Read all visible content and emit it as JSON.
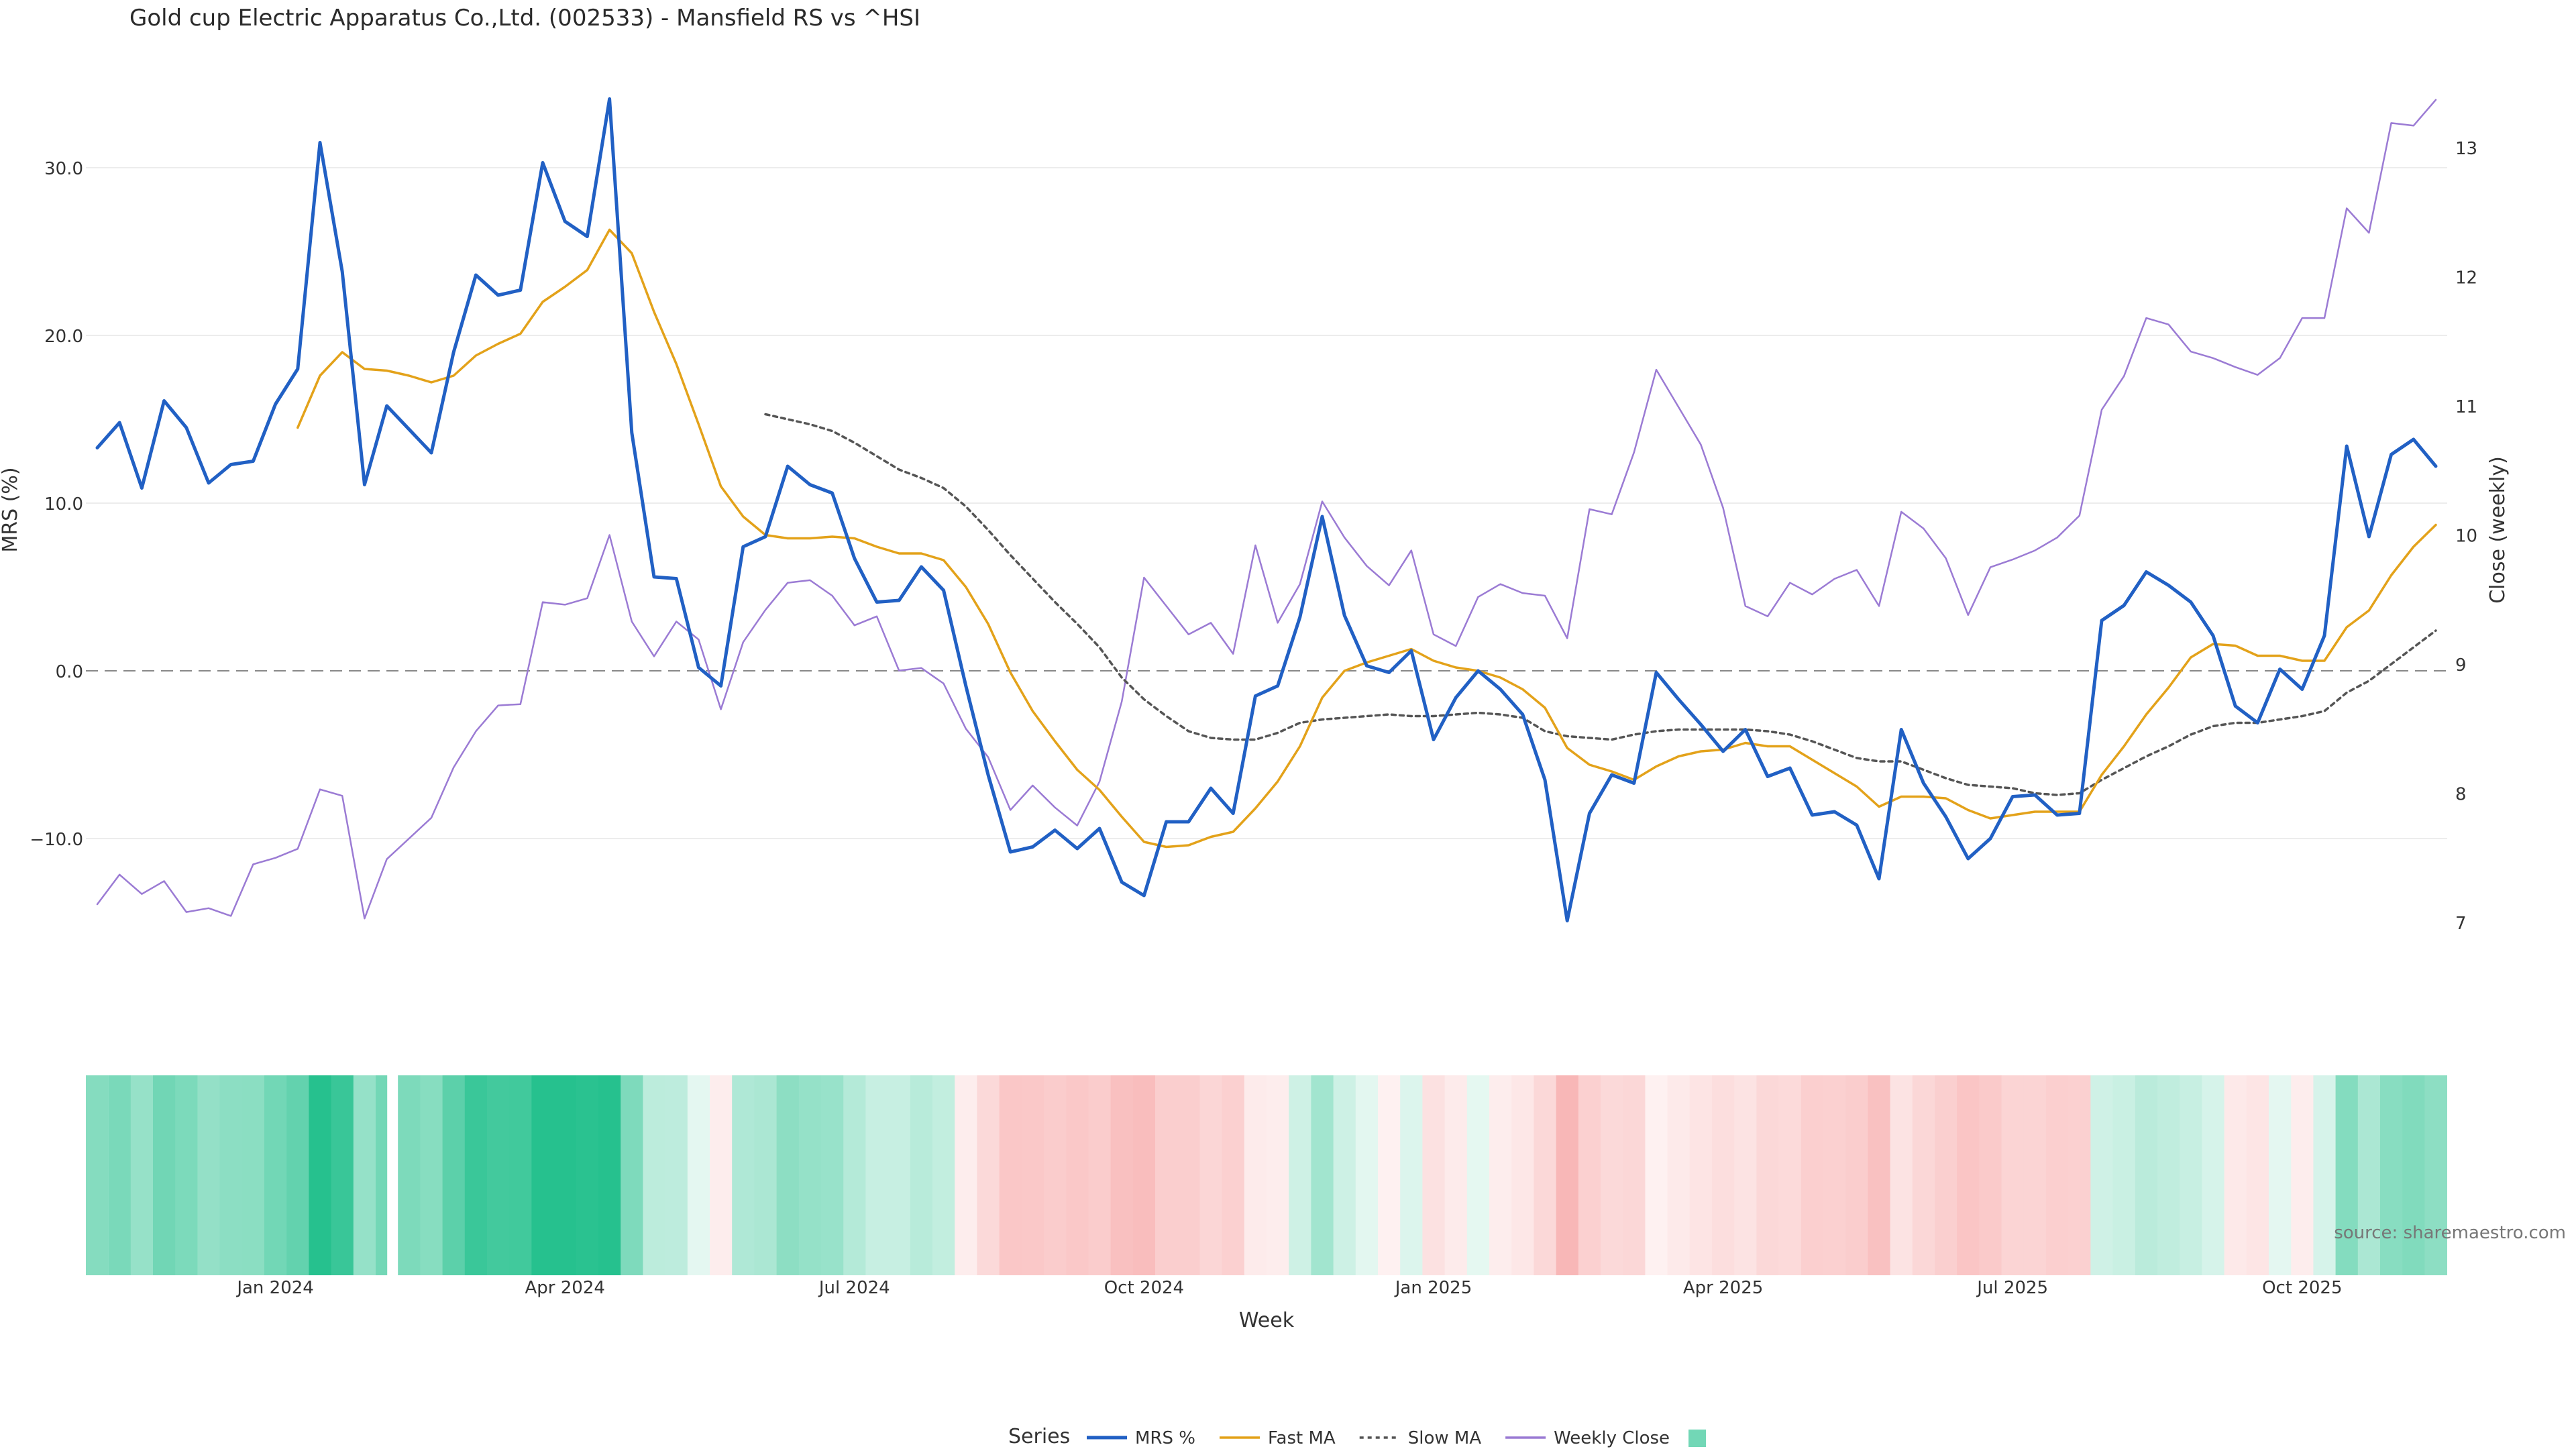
{
  "chart_data": {
    "type": "line",
    "title": "Gold cup Electric Apparatus Co.,Ltd. (002533) - Mansfield RS vs ^HSI",
    "xlabel": "Week",
    "ylabel": "MRS (%)",
    "y2label": "Close (weekly)",
    "ylim": [
      -17,
      36
    ],
    "y2lim": [
      6.6,
      13.5
    ],
    "yticks": [
      -10,
      0,
      10,
      20,
      30
    ],
    "ytick_labels": [
      "−10.0",
      "0.0",
      "10.0",
      "20.0",
      "30.0"
    ],
    "y2ticks": [
      7,
      8,
      9,
      10,
      11,
      12,
      13
    ],
    "y2tick_labels": [
      "7",
      "8",
      "9",
      "10",
      "11",
      "12",
      "13"
    ],
    "x_tick_labels": [
      {
        "label": "Jan 2024",
        "index": 8
      },
      {
        "label": "Apr 2024",
        "index": 21
      },
      {
        "label": "Jul 2024",
        "index": 34
      },
      {
        "label": "Oct 2024",
        "index": 47
      },
      {
        "label": "Jan 2025",
        "index": 60
      },
      {
        "label": "Apr 2025",
        "index": 73
      },
      {
        "label": "Jul 2025",
        "index": 86
      },
      {
        "label": "Oct 2025",
        "index": 99
      }
    ],
    "gap_after_index": 13,
    "grid": true,
    "legend_title": "Series",
    "legend_position": "bottom-center",
    "source_note": "source: sharemaestro.com",
    "series": [
      {
        "name": "MRS %",
        "axis": "left",
        "color": "#2160c4",
        "style": "solid",
        "values": [
          13.3,
          14.8,
          10.9,
          16.1,
          14.5,
          11.2,
          12.3,
          12.5,
          15.9,
          18.0,
          31.5,
          23.8,
          11.1,
          15.8,
          14.4,
          13.0,
          19.0,
          23.6,
          22.4,
          22.7,
          30.3,
          26.8,
          25.9,
          34.1,
          14.2,
          5.6,
          5.5,
          0.2,
          -0.9,
          7.4,
          8.0,
          12.2,
          11.1,
          10.6,
          6.7,
          4.1,
          4.2,
          6.2,
          4.8,
          -0.9,
          -6.2,
          -10.8,
          -10.5,
          -9.5,
          -10.6,
          -9.4,
          -12.6,
          -13.4,
          -9.0,
          -9.0,
          -7.0,
          -8.5,
          -1.5,
          -0.9,
          3.2,
          9.2,
          3.3,
          0.3,
          -0.1,
          1.2,
          -4.1,
          -1.6,
          0.0,
          -1.1,
          -2.6,
          -6.5,
          -14.9,
          -8.5,
          -6.2,
          -6.7,
          -0.1,
          -1.7,
          -3.2,
          -4.8,
          -3.5,
          -6.3,
          -5.8,
          -8.6,
          -8.4,
          -9.2,
          -12.4,
          -3.5,
          -6.7,
          -8.7,
          -11.2,
          -10.0,
          -7.5,
          -7.4,
          -8.6,
          -8.5,
          3.0,
          3.9,
          5.9,
          5.1,
          4.1,
          2.1,
          -2.1,
          -3.1,
          0.1,
          -1.1,
          2.1,
          13.4,
          8.0,
          12.9,
          13.8,
          12.2
        ]
      },
      {
        "name": "Fast MA",
        "axis": "left",
        "color": "#e3a21a",
        "style": "solid",
        "values": [
          null,
          null,
          null,
          null,
          null,
          null,
          null,
          null,
          null,
          14.5,
          17.6,
          19.0,
          18.0,
          17.9,
          17.6,
          17.2,
          17.6,
          18.8,
          19.5,
          20.1,
          22.0,
          22.9,
          23.9,
          26.3,
          24.9,
          21.4,
          18.3,
          14.7,
          11.0,
          9.2,
          8.1,
          7.9,
          7.9,
          8.0,
          7.9,
          7.4,
          7.0,
          7.0,
          6.6,
          5.0,
          2.8,
          -0.1,
          -2.4,
          -4.2,
          -5.9,
          -7.1,
          -8.7,
          -10.2,
          -10.5,
          -10.4,
          -9.9,
          -9.6,
          -8.2,
          -6.6,
          -4.5,
          -1.6,
          0.0,
          0.5,
          0.9,
          1.3,
          0.6,
          0.2,
          0.0,
          -0.4,
          -1.1,
          -2.2,
          -4.6,
          -5.6,
          -6.0,
          -6.5,
          -5.7,
          -5.1,
          -4.8,
          -4.7,
          -4.3,
          -4.5,
          -4.5,
          -5.3,
          -6.1,
          -6.9,
          -8.1,
          -7.5,
          -7.5,
          -7.6,
          -8.3,
          -8.8,
          -8.6,
          -8.4,
          -8.4,
          -8.4,
          -6.2,
          -4.5,
          -2.6,
          -1.0,
          0.8,
          1.6,
          1.5,
          0.9,
          0.9,
          0.6,
          0.6,
          2.6,
          3.6,
          5.7,
          7.4,
          8.7
        ]
      },
      {
        "name": "Slow MA",
        "axis": "left",
        "color": "#555555",
        "style": "dotted",
        "values": [
          null,
          null,
          null,
          null,
          null,
          null,
          null,
          null,
          null,
          null,
          null,
          null,
          null,
          null,
          null,
          null,
          null,
          null,
          null,
          null,
          null,
          null,
          null,
          null,
          null,
          null,
          null,
          null,
          null,
          null,
          15.3,
          15.0,
          14.7,
          14.3,
          13.6,
          12.8,
          12.0,
          11.5,
          10.9,
          9.8,
          8.4,
          6.9,
          5.5,
          4.1,
          2.8,
          1.4,
          -0.4,
          -1.7,
          -2.7,
          -3.6,
          -4.0,
          -4.1,
          -4.1,
          -3.7,
          -3.1,
          -2.9,
          -2.8,
          -2.7,
          -2.6,
          -2.7,
          -2.7,
          -2.6,
          -2.5,
          -2.6,
          -2.8,
          -3.6,
          -3.9,
          -4.0,
          -4.1,
          -3.8,
          -3.6,
          -3.5,
          -3.5,
          -3.5,
          -3.5,
          -3.6,
          -3.8,
          -4.2,
          -4.7,
          -5.2,
          -5.4,
          -5.4,
          -5.9,
          -6.4,
          -6.8,
          -6.9,
          -7.0,
          -7.3,
          -7.4,
          -7.3,
          -6.5,
          -5.8,
          -5.1,
          -4.5,
          -3.8,
          -3.3,
          -3.1,
          -3.1,
          -2.9,
          -2.7,
          -2.4,
          -1.3,
          -0.6,
          0.4,
          1.4,
          2.4
        ]
      },
      {
        "name": "Weekly Close",
        "axis": "right",
        "color": "#9b7bd4",
        "style": "solid",
        "values": [
          7.14,
          7.37,
          7.22,
          7.32,
          7.08,
          7.11,
          7.05,
          7.45,
          7.5,
          7.57,
          8.03,
          7.98,
          7.03,
          7.49,
          7.65,
          7.81,
          8.2,
          8.48,
          8.68,
          8.69,
          9.48,
          9.46,
          9.51,
          10.0,
          9.33,
          9.06,
          9.33,
          9.19,
          8.65,
          9.17,
          9.42,
          9.63,
          9.65,
          9.53,
          9.3,
          9.37,
          8.95,
          8.97,
          8.85,
          8.5,
          8.28,
          7.87,
          8.06,
          7.89,
          7.75,
          8.09,
          8.71,
          9.67,
          9.45,
          9.23,
          9.32,
          9.08,
          9.92,
          9.32,
          9.62,
          10.26,
          9.98,
          9.76,
          9.61,
          9.88,
          9.23,
          9.14,
          9.52,
          9.62,
          9.55,
          9.53,
          9.2,
          10.2,
          10.16,
          10.64,
          11.28,
          10.99,
          10.7,
          10.21,
          9.45,
          9.37,
          9.63,
          9.54,
          9.66,
          9.73,
          9.45,
          10.18,
          10.05,
          9.82,
          9.38,
          9.75,
          9.81,
          9.88,
          9.98,
          10.15,
          10.97,
          11.23,
          11.68,
          11.63,
          11.42,
          11.37,
          11.3,
          11.24,
          11.37,
          11.68,
          11.68,
          12.53,
          12.34,
          13.19,
          13.17,
          13.37
        ]
      }
    ],
    "heatmap_band": {
      "description": "weekly MRS color band (green = positive, red = negative), one cell per week, values follow the MRS % series",
      "positive_color": "#26c18e",
      "negative_color": "#f48a8a"
    }
  }
}
